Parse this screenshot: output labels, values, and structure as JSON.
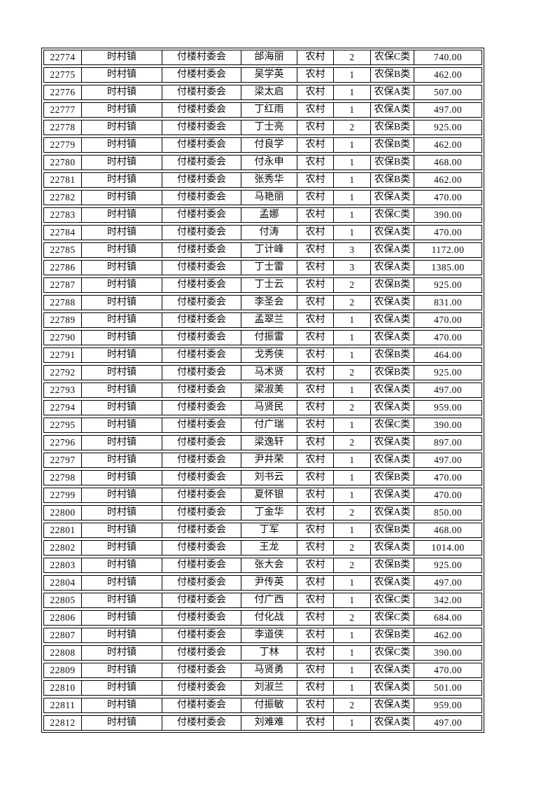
{
  "table": {
    "rows": [
      [
        "22774",
        "时村镇",
        "付楼村委会",
        "邰海丽",
        "农村",
        "2",
        "农保C类",
        "740.00"
      ],
      [
        "22775",
        "时村镇",
        "付楼村委会",
        "吴学英",
        "农村",
        "1",
        "农保B类",
        "462.00"
      ],
      [
        "22776",
        "时村镇",
        "付楼村委会",
        "梁太启",
        "农村",
        "1",
        "农保A类",
        "507.00"
      ],
      [
        "22777",
        "时村镇",
        "付楼村委会",
        "丁红雨",
        "农村",
        "1",
        "农保A类",
        "497.00"
      ],
      [
        "22778",
        "时村镇",
        "付楼村委会",
        "丁士亮",
        "农村",
        "2",
        "农保B类",
        "925.00"
      ],
      [
        "22779",
        "时村镇",
        "付楼村委会",
        "付良学",
        "农村",
        "1",
        "农保B类",
        "462.00"
      ],
      [
        "22780",
        "时村镇",
        "付楼村委会",
        "付永申",
        "农村",
        "1",
        "农保B类",
        "468.00"
      ],
      [
        "22781",
        "时村镇",
        "付楼村委会",
        "张秀华",
        "农村",
        "1",
        "农保B类",
        "462.00"
      ],
      [
        "22782",
        "时村镇",
        "付楼村委会",
        "马艳丽",
        "农村",
        "1",
        "农保A类",
        "470.00"
      ],
      [
        "22783",
        "时村镇",
        "付楼村委会",
        "孟娜",
        "农村",
        "1",
        "农保C类",
        "390.00"
      ],
      [
        "22784",
        "时村镇",
        "付楼村委会",
        "付涛",
        "农村",
        "1",
        "农保A类",
        "470.00"
      ],
      [
        "22785",
        "时村镇",
        "付楼村委会",
        "丁计峰",
        "农村",
        "3",
        "农保A类",
        "1172.00"
      ],
      [
        "22786",
        "时村镇",
        "付楼村委会",
        "丁士雷",
        "农村",
        "3",
        "农保A类",
        "1385.00"
      ],
      [
        "22787",
        "时村镇",
        "付楼村委会",
        "丁士云",
        "农村",
        "2",
        "农保B类",
        "925.00"
      ],
      [
        "22788",
        "时村镇",
        "付楼村委会",
        "李圣会",
        "农村",
        "2",
        "农保A类",
        "831.00"
      ],
      [
        "22789",
        "时村镇",
        "付楼村委会",
        "孟翠兰",
        "农村",
        "1",
        "农保A类",
        "470.00"
      ],
      [
        "22790",
        "时村镇",
        "付楼村委会",
        "付振雷",
        "农村",
        "1",
        "农保A类",
        "470.00"
      ],
      [
        "22791",
        "时村镇",
        "付楼村委会",
        "戈秀侠",
        "农村",
        "1",
        "农保B类",
        "464.00"
      ],
      [
        "22792",
        "时村镇",
        "付楼村委会",
        "马术贤",
        "农村",
        "2",
        "农保B类",
        "925.00"
      ],
      [
        "22793",
        "时村镇",
        "付楼村委会",
        "梁淑美",
        "农村",
        "1",
        "农保A类",
        "497.00"
      ],
      [
        "22794",
        "时村镇",
        "付楼村委会",
        "马贤民",
        "农村",
        "2",
        "农保A类",
        "959.00"
      ],
      [
        "22795",
        "时村镇",
        "付楼村委会",
        "付广瑞",
        "农村",
        "1",
        "农保C类",
        "390.00"
      ],
      [
        "22796",
        "时村镇",
        "付楼村委会",
        "梁逸轩",
        "农村",
        "2",
        "农保A类",
        "897.00"
      ],
      [
        "22797",
        "时村镇",
        "付楼村委会",
        "尹井荣",
        "农村",
        "1",
        "农保A类",
        "497.00"
      ],
      [
        "22798",
        "时村镇",
        "付楼村委会",
        "刘书云",
        "农村",
        "1",
        "农保B类",
        "470.00"
      ],
      [
        "22799",
        "时村镇",
        "付楼村委会",
        "夏怀银",
        "农村",
        "1",
        "农保A类",
        "470.00"
      ],
      [
        "22800",
        "时村镇",
        "付楼村委会",
        "丁金华",
        "农村",
        "2",
        "农保A类",
        "850.00"
      ],
      [
        "22801",
        "时村镇",
        "付楼村委会",
        "丁军",
        "农村",
        "1",
        "农保B类",
        "468.00"
      ],
      [
        "22802",
        "时村镇",
        "付楼村委会",
        "王龙",
        "农村",
        "2",
        "农保A类",
        "1014.00"
      ],
      [
        "22803",
        "时村镇",
        "付楼村委会",
        "张大会",
        "农村",
        "2",
        "农保B类",
        "925.00"
      ],
      [
        "22804",
        "时村镇",
        "付楼村委会",
        "尹传英",
        "农村",
        "1",
        "农保A类",
        "497.00"
      ],
      [
        "22805",
        "时村镇",
        "付楼村委会",
        "付广西",
        "农村",
        "1",
        "农保C类",
        "342.00"
      ],
      [
        "22806",
        "时村镇",
        "付楼村委会",
        "付化战",
        "农村",
        "2",
        "农保C类",
        "684.00"
      ],
      [
        "22807",
        "时村镇",
        "付楼村委会",
        "李道侠",
        "农村",
        "1",
        "农保B类",
        "462.00"
      ],
      [
        "22808",
        "时村镇",
        "付楼村委会",
        "丁林",
        "农村",
        "1",
        "农保C类",
        "390.00"
      ],
      [
        "22809",
        "时村镇",
        "付楼村委会",
        "马贤勇",
        "农村",
        "1",
        "农保A类",
        "470.00"
      ],
      [
        "22810",
        "时村镇",
        "付楼村委会",
        "刘淑兰",
        "农村",
        "1",
        "农保A类",
        "501.00"
      ],
      [
        "22811",
        "时村镇",
        "付楼村委会",
        "付振敏",
        "农村",
        "2",
        "农保A类",
        "959.00"
      ],
      [
        "22812",
        "时村镇",
        "付楼村委会",
        "刘难难",
        "农村",
        "1",
        "农保A类",
        "497.00"
      ]
    ]
  }
}
